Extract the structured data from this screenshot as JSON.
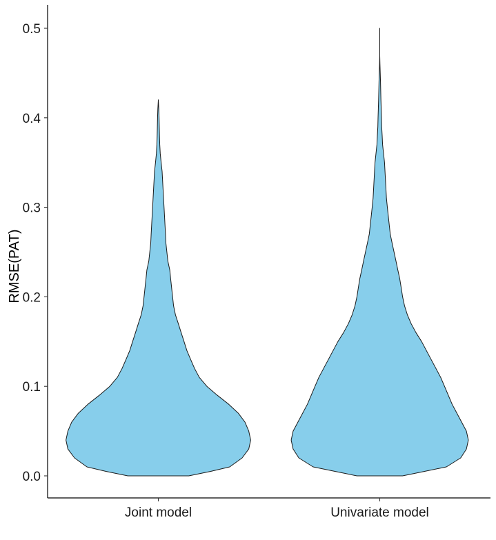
{
  "chart_data": {
    "type": "violin",
    "title": "",
    "xlabel": "",
    "ylabel": "RMSE(PAT)",
    "ylim": [
      -0.025,
      0.525
    ],
    "yticks": [
      "0.0",
      "0.1",
      "0.2",
      "0.3",
      "0.4",
      "0.5"
    ],
    "grid": false,
    "legend": "none",
    "fill_color": "#87CEEB",
    "outline_color": "#1a1a1a",
    "categories": [
      "Joint model",
      "Univariate model"
    ],
    "series": [
      {
        "category": "Joint model",
        "min": 0.0,
        "max": 0.42,
        "density_profile": [
          [
            0.0,
            0.32
          ],
          [
            0.005,
            0.55
          ],
          [
            0.01,
            0.75
          ],
          [
            0.02,
            0.88
          ],
          [
            0.03,
            0.95
          ],
          [
            0.04,
            0.97
          ],
          [
            0.05,
            0.95
          ],
          [
            0.06,
            0.91
          ],
          [
            0.07,
            0.84
          ],
          [
            0.08,
            0.74
          ],
          [
            0.09,
            0.62
          ],
          [
            0.1,
            0.51
          ],
          [
            0.11,
            0.43
          ],
          [
            0.12,
            0.38
          ],
          [
            0.13,
            0.34
          ],
          [
            0.14,
            0.3
          ],
          [
            0.15,
            0.27
          ],
          [
            0.16,
            0.24
          ],
          [
            0.17,
            0.21
          ],
          [
            0.18,
            0.18
          ],
          [
            0.19,
            0.16
          ],
          [
            0.2,
            0.15
          ],
          [
            0.21,
            0.14
          ],
          [
            0.22,
            0.13
          ],
          [
            0.23,
            0.12
          ],
          [
            0.24,
            0.1
          ],
          [
            0.25,
            0.09
          ],
          [
            0.26,
            0.08
          ],
          [
            0.27,
            0.075
          ],
          [
            0.28,
            0.07
          ],
          [
            0.29,
            0.065
          ],
          [
            0.3,
            0.06
          ],
          [
            0.31,
            0.055
          ],
          [
            0.32,
            0.05
          ],
          [
            0.33,
            0.045
          ],
          [
            0.34,
            0.04
          ],
          [
            0.35,
            0.03
          ],
          [
            0.36,
            0.02
          ],
          [
            0.37,
            0.015
          ],
          [
            0.38,
            0.012
          ],
          [
            0.39,
            0.01
          ],
          [
            0.4,
            0.008
          ],
          [
            0.41,
            0.005
          ],
          [
            0.42,
            0.0
          ]
        ]
      },
      {
        "category": "Univariate model",
        "min": 0.0,
        "max": 0.5,
        "density_profile": [
          [
            0.0,
            0.24
          ],
          [
            0.005,
            0.47
          ],
          [
            0.01,
            0.7
          ],
          [
            0.02,
            0.85
          ],
          [
            0.03,
            0.91
          ],
          [
            0.04,
            0.93
          ],
          [
            0.05,
            0.91
          ],
          [
            0.06,
            0.86
          ],
          [
            0.07,
            0.81
          ],
          [
            0.08,
            0.76
          ],
          [
            0.09,
            0.72
          ],
          [
            0.1,
            0.68
          ],
          [
            0.11,
            0.64
          ],
          [
            0.12,
            0.59
          ],
          [
            0.13,
            0.54
          ],
          [
            0.14,
            0.49
          ],
          [
            0.15,
            0.44
          ],
          [
            0.16,
            0.38
          ],
          [
            0.17,
            0.33
          ],
          [
            0.18,
            0.29
          ],
          [
            0.19,
            0.26
          ],
          [
            0.2,
            0.24
          ],
          [
            0.21,
            0.225
          ],
          [
            0.22,
            0.21
          ],
          [
            0.23,
            0.19
          ],
          [
            0.24,
            0.17
          ],
          [
            0.25,
            0.15
          ],
          [
            0.26,
            0.13
          ],
          [
            0.27,
            0.11
          ],
          [
            0.28,
            0.1
          ],
          [
            0.29,
            0.09
          ],
          [
            0.3,
            0.08
          ],
          [
            0.31,
            0.07
          ],
          [
            0.32,
            0.065
          ],
          [
            0.33,
            0.06
          ],
          [
            0.34,
            0.055
          ],
          [
            0.35,
            0.05
          ],
          [
            0.36,
            0.04
          ],
          [
            0.37,
            0.03
          ],
          [
            0.38,
            0.025
          ],
          [
            0.39,
            0.02
          ],
          [
            0.4,
            0.018
          ],
          [
            0.41,
            0.015
          ],
          [
            0.42,
            0.012
          ],
          [
            0.43,
            0.01
          ],
          [
            0.44,
            0.008
          ],
          [
            0.45,
            0.005
          ],
          [
            0.46,
            0.002
          ],
          [
            0.47,
            0.0
          ],
          [
            0.5,
            0.0
          ]
        ]
      }
    ]
  }
}
